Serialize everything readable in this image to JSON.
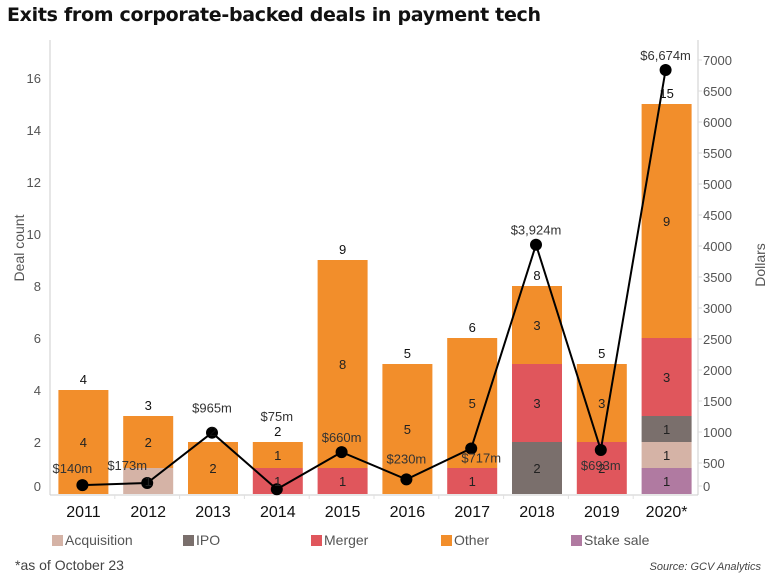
{
  "title": "Exits from corporate-backed deals in payment tech",
  "footnote": "*as of October 23",
  "source": "Source: GCV Analytics",
  "colors": {
    "Acquisition": "#d5b3a6",
    "IPO": "#7a6f6c",
    "Merger": "#e0565c",
    "Other": "#f28e2b",
    "Stake sale": "#b07aa1",
    "line": "#000000"
  },
  "chart_data": {
    "type": "bar",
    "subtype": "stacked bar with line overlay (dual axis)",
    "title": "Exits from corporate-backed deals in payment tech",
    "categories": [
      "2011",
      "2012",
      "2013",
      "2014",
      "2015",
      "2016",
      "2017",
      "2018",
      "2019",
      "2020*"
    ],
    "ylabel": "Deal count",
    "y2label": "Dollars",
    "ylim": [
      0,
      16
    ],
    "y_ticks": [
      "0",
      "2",
      "4",
      "6",
      "8",
      "10",
      "12",
      "14",
      "16"
    ],
    "y2lim": [
      0,
      7000
    ],
    "y2_ticks": [
      "0",
      "500",
      "1000",
      "1500",
      "2000",
      "2500",
      "3000",
      "3500",
      "4000",
      "4500",
      "5000",
      "5500",
      "6000",
      "6500",
      "7000"
    ],
    "legend": [
      "Acquisition",
      "IPO",
      "Merger",
      "Other",
      "Stake sale"
    ],
    "legend_position": "bottom",
    "series": [
      {
        "name": "Stake sale",
        "values": [
          0,
          0,
          0,
          0,
          0,
          0,
          0,
          0,
          0,
          1
        ]
      },
      {
        "name": "Acquisition",
        "values": [
          0,
          1,
          0,
          0,
          0,
          0,
          0,
          0,
          0,
          1
        ]
      },
      {
        "name": "IPO",
        "values": [
          0,
          0,
          0,
          0,
          0,
          0,
          0,
          2,
          0,
          1
        ]
      },
      {
        "name": "Merger",
        "values": [
          0,
          0,
          0,
          1,
          1,
          0,
          1,
          3,
          2,
          3
        ]
      },
      {
        "name": "Other",
        "values": [
          4,
          2,
          2,
          1,
          8,
          5,
          5,
          3,
          3,
          9
        ]
      }
    ],
    "totals": [
      4,
      3,
      2,
      2,
      9,
      5,
      6,
      8,
      5,
      15
    ],
    "line_series": {
      "name": "Dollars",
      "axis": "right",
      "values": [
        140,
        173,
        965,
        75,
        660,
        230,
        717,
        3924,
        693,
        6674
      ],
      "labels": [
        "$140m",
        "$173m",
        "$965m",
        "$75m",
        "$660m",
        "$230m",
        "$717m",
        "$3,924m",
        "$693m",
        "$6,674m"
      ]
    },
    "grid": false
  }
}
